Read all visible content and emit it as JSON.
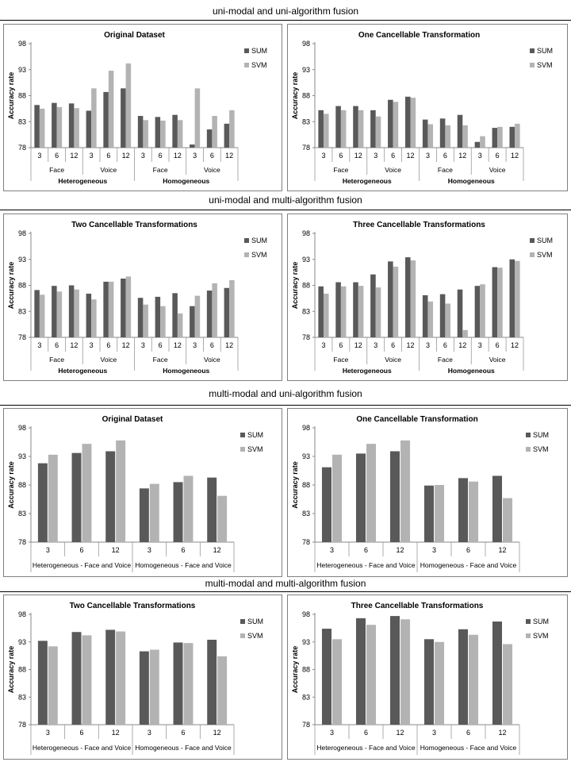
{
  "sections": [
    "uni-modal and uni-algorithm fusion",
    "uni-modal and multi-algorithm fusion",
    "multi-modal and uni-algorithm fusion",
    "multi-modal and multi-algorithm fusion"
  ],
  "colors": {
    "sum": "#595959",
    "svm": "#b3b3b3"
  },
  "chart_data": [
    {
      "type": "bar",
      "title": "Original Dataset",
      "ylabel": "Accuracy rate",
      "ylim": [
        78,
        98
      ],
      "yticks": [
        78,
        83,
        88,
        93,
        98
      ],
      "categories": [
        "3",
        "6",
        "12",
        "3",
        "6",
        "12",
        "3",
        "6",
        "12",
        "3",
        "6",
        "12"
      ],
      "subgroups": [
        "Face",
        "Voice",
        "Face",
        "Voice"
      ],
      "groups": [
        "Heterogeneous",
        "Homogeneous"
      ],
      "legend": "right",
      "series": [
        {
          "name": "SUM",
          "values": [
            86.2,
            86.6,
            86.5,
            85.1,
            88.7,
            89.4,
            84.1,
            83.9,
            84.3,
            78.6,
            81.5,
            82.6
          ]
        },
        {
          "name": "SVM",
          "values": [
            85.5,
            85.8,
            85.6,
            89.4,
            92.8,
            94.2,
            83.3,
            83.2,
            83.3,
            89.4,
            84.1,
            85.2
          ]
        }
      ]
    },
    {
      "type": "bar",
      "title": "One Cancellable Transformation",
      "ylabel": "Accuracy rate",
      "ylim": [
        78,
        98
      ],
      "yticks": [
        78,
        83,
        88,
        93,
        98
      ],
      "categories": [
        "3",
        "6",
        "12",
        "3",
        "6",
        "12",
        "3",
        "6",
        "12",
        "3",
        "6",
        "12"
      ],
      "subgroups": [
        "Face",
        "Voice",
        "Face",
        "Voice"
      ],
      "groups": [
        "Heterogeneous",
        "Homogeneous"
      ],
      "legend": "right",
      "series": [
        {
          "name": "SUM",
          "values": [
            85.2,
            86.0,
            86.0,
            85.2,
            87.2,
            87.8,
            83.4,
            83.6,
            84.3,
            79.1,
            81.8,
            82.0
          ]
        },
        {
          "name": "SVM",
          "values": [
            84.5,
            85.2,
            85.2,
            84.0,
            86.8,
            87.6,
            82.5,
            82.3,
            82.3,
            80.2,
            82.0,
            82.6
          ]
        }
      ]
    },
    {
      "type": "bar",
      "title": "Two Cancellable Transformations",
      "ylabel": "Accuracy rate",
      "ylim": [
        78,
        98
      ],
      "yticks": [
        78,
        83,
        88,
        93,
        98
      ],
      "categories": [
        "3",
        "6",
        "12",
        "3",
        "6",
        "12",
        "3",
        "6",
        "12",
        "3",
        "6",
        "12"
      ],
      "subgroups": [
        "Face",
        "Voice",
        "Face",
        "Voice"
      ],
      "groups": [
        "Heterogeneous",
        "Homogeneous"
      ],
      "legend": "right",
      "series": [
        {
          "name": "SUM",
          "values": [
            87.1,
            87.9,
            88.0,
            86.4,
            88.7,
            89.3,
            85.6,
            85.8,
            86.5,
            84.0,
            87.0,
            87.5
          ]
        },
        {
          "name": "SVM",
          "values": [
            86.2,
            86.8,
            87.2,
            85.3,
            88.7,
            89.7,
            84.3,
            84.0,
            82.6,
            86.0,
            88.4,
            89.0
          ]
        }
      ]
    },
    {
      "type": "bar",
      "title": "Three Cancellable Transformations",
      "ylabel": "Accuracy rate",
      "ylim": [
        78,
        98
      ],
      "yticks": [
        78,
        83,
        88,
        93,
        98
      ],
      "categories": [
        "3",
        "6",
        "12",
        "3",
        "6",
        "12",
        "3",
        "6",
        "12",
        "3",
        "6",
        "12"
      ],
      "subgroups": [
        "Face",
        "Voice",
        "Face",
        "Voice"
      ],
      "groups": [
        "Heterogeneous",
        "Homogeneous"
      ],
      "legend": "right",
      "series": [
        {
          "name": "SUM",
          "values": [
            87.8,
            88.6,
            88.6,
            90.1,
            92.6,
            93.4,
            86.1,
            86.3,
            87.2,
            87.9,
            91.5,
            93.0
          ]
        },
        {
          "name": "SVM",
          "values": [
            86.4,
            87.8,
            87.9,
            87.6,
            91.6,
            92.8,
            84.9,
            84.5,
            79.4,
            88.2,
            91.4,
            92.7
          ]
        }
      ]
    },
    {
      "type": "bar",
      "title": "Original Dataset",
      "ylabel": "Accuracy rate",
      "ylim": [
        78,
        98
      ],
      "yticks": [
        78,
        83,
        88,
        93,
        98
      ],
      "categories": [
        "3",
        "6",
        "12",
        "3",
        "6",
        "12"
      ],
      "groups": [
        "Heterogeneous - Face and Voice",
        "Homogeneous - Face and Voice"
      ],
      "legend": "right",
      "series": [
        {
          "name": "SUM",
          "values": [
            91.8,
            93.6,
            93.9,
            87.4,
            88.5,
            89.3
          ]
        },
        {
          "name": "SVM",
          "values": [
            93.3,
            95.2,
            95.8,
            88.2,
            89.6,
            86.1
          ]
        }
      ]
    },
    {
      "type": "bar",
      "title": "One Cancellable Transformation",
      "ylabel": "Accuracy rate",
      "ylim": [
        78,
        98
      ],
      "yticks": [
        78,
        83,
        88,
        93,
        98
      ],
      "categories": [
        "3",
        "6",
        "12",
        "3",
        "6",
        "12"
      ],
      "groups": [
        "Heterogeneous - Face and Voice",
        "Homogeneous - Face and Voice"
      ],
      "legend": "right",
      "series": [
        {
          "name": "SUM",
          "values": [
            91.1,
            93.5,
            93.9,
            87.9,
            89.2,
            89.6
          ]
        },
        {
          "name": "SVM",
          "values": [
            93.3,
            95.2,
            95.8,
            88.0,
            88.6,
            85.7
          ]
        }
      ]
    },
    {
      "type": "bar",
      "title": "Two Cancellable Transformations",
      "ylabel": "Accuracy rate",
      "ylim": [
        78,
        98
      ],
      "yticks": [
        78,
        83,
        88,
        93,
        98
      ],
      "categories": [
        "3",
        "6",
        "12",
        "3",
        "6",
        "12"
      ],
      "groups": [
        "Heterogeneous - Face and Voice",
        "Homogeneous - Face and Voice"
      ],
      "legend": "right",
      "series": [
        {
          "name": "SUM",
          "values": [
            93.2,
            94.8,
            95.2,
            91.3,
            92.9,
            93.4
          ]
        },
        {
          "name": "SVM",
          "values": [
            92.2,
            94.2,
            94.9,
            91.6,
            92.8,
            90.4
          ]
        }
      ]
    },
    {
      "type": "bar",
      "title": "Three Cancellable Transformations",
      "ylabel": "Accuracy rate",
      "ylim": [
        78,
        98
      ],
      "yticks": [
        78,
        83,
        88,
        93,
        98
      ],
      "categories": [
        "3",
        "6",
        "12",
        "3",
        "6",
        "12"
      ],
      "groups": [
        "Heterogeneous - Face and Voice",
        "Homogeneous - Face and Voice"
      ],
      "legend": "right",
      "series": [
        {
          "name": "SUM",
          "values": [
            95.4,
            97.3,
            97.7,
            93.5,
            95.3,
            96.7
          ]
        },
        {
          "name": "SVM",
          "values": [
            93.5,
            96.1,
            97.1,
            93.0,
            94.3,
            92.6
          ]
        }
      ]
    }
  ]
}
